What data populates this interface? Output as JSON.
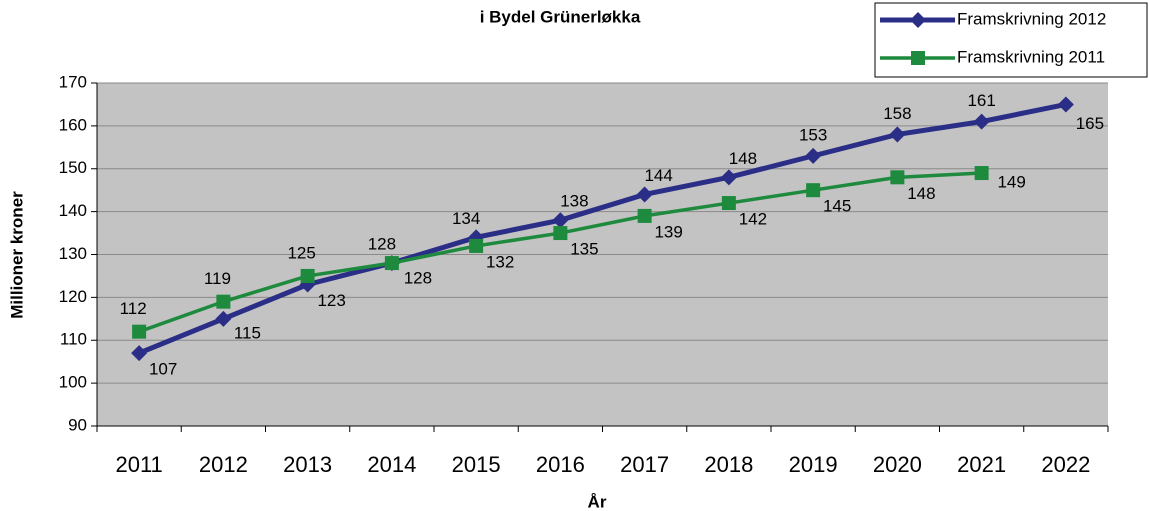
{
  "chart_data": {
    "type": "line",
    "title": "i Bydel Grünerløkka",
    "x_label": "År",
    "y_label": "Millioner kroner",
    "categories": [
      "2011",
      "2012",
      "2013",
      "2014",
      "2015",
      "2016",
      "2017",
      "2018",
      "2019",
      "2020",
      "2021",
      "2022"
    ],
    "series": [
      {
        "name": "Framskrivning 2012",
        "color": "#2b2e86",
        "marker": "diamond",
        "values": [
          107,
          115,
          123,
          128,
          134,
          138,
          144,
          148,
          153,
          158,
          161,
          165
        ]
      },
      {
        "name": "Framskrivning 2011",
        "color": "#1e8a3e",
        "marker": "square",
        "values": [
          112,
          119,
          125,
          128,
          132,
          135,
          139,
          142,
          145,
          148,
          149,
          null
        ]
      }
    ],
    "ylim": [
      90,
      170
    ],
    "yticks": [
      90,
      100,
      110,
      120,
      130,
      140,
      150,
      160,
      170
    ],
    "grid": true,
    "legend": "top-right"
  }
}
